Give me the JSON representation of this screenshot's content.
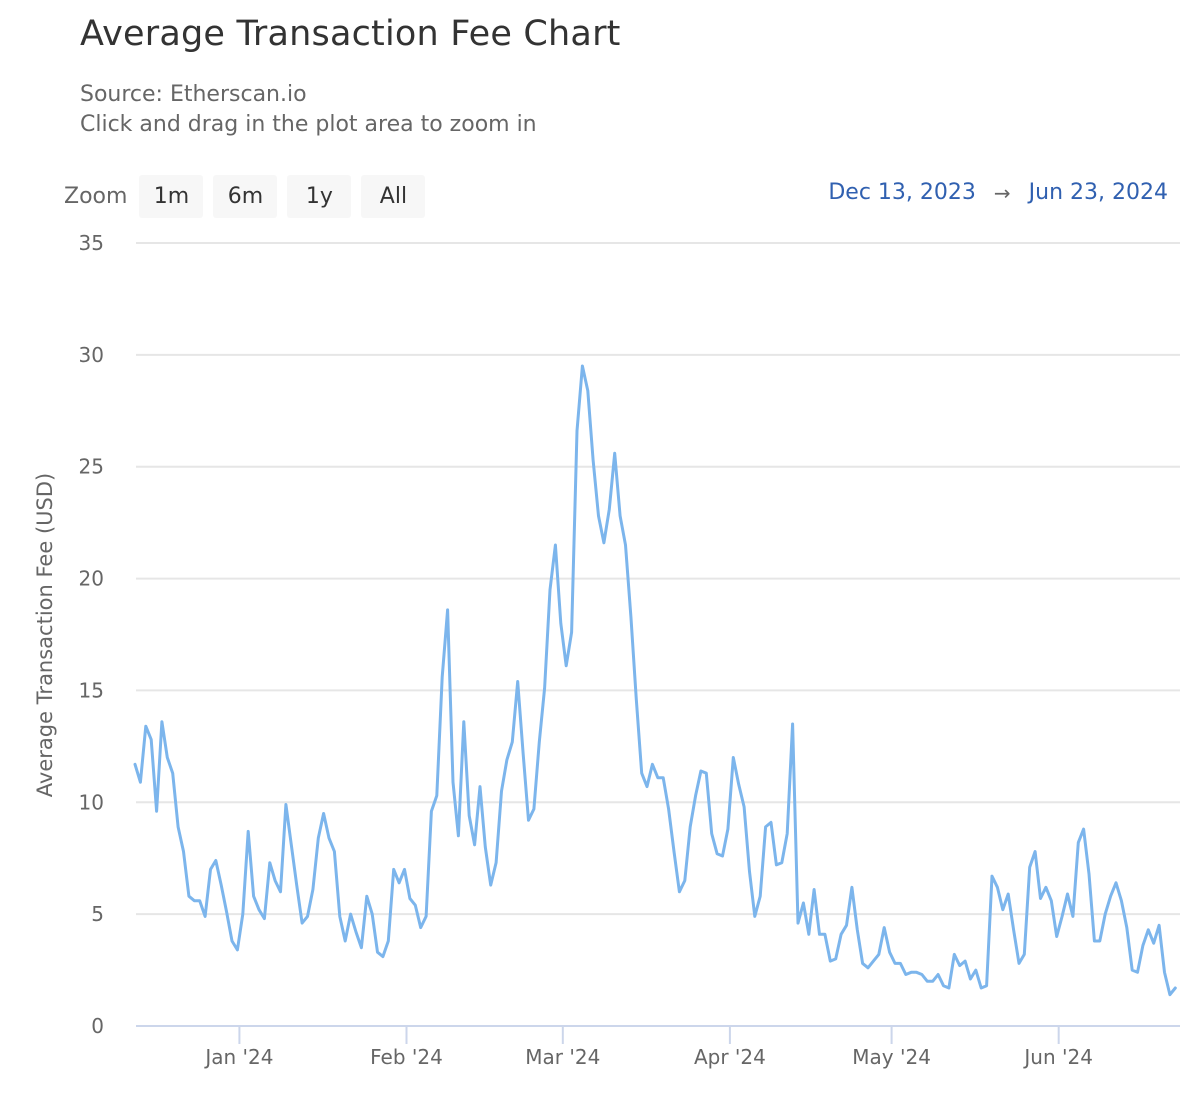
{
  "header": {
    "title": "Average Transaction Fee Chart",
    "source": "Source: Etherscan.io",
    "hint": "Click and drag in the plot area to zoom in"
  },
  "zoom": {
    "label": "Zoom",
    "buttons": [
      "1m",
      "6m",
      "1y",
      "All"
    ]
  },
  "range": {
    "from": "Dec 13, 2023",
    "arrow": "→",
    "to": "Jun 23, 2024"
  },
  "colors": {
    "line": "#7cb5ec",
    "grid": "#e6e6e6",
    "axis": "#ccd6eb",
    "date_text": "#3060b0"
  },
  "chart_data": {
    "type": "line",
    "title": "Average Transaction Fee Chart",
    "subtitle": "Source: Etherscan.io",
    "xlabel": "",
    "ylabel": "Average Transaction Fee (USD)",
    "ylim": [
      0,
      35
    ],
    "yticks": [
      0,
      5,
      10,
      15,
      20,
      25,
      30,
      35
    ],
    "xticks": [
      "Jan '24",
      "Feb '24",
      "Mar '24",
      "Apr '24",
      "May '24",
      "Jun '24"
    ],
    "xtick_day_index": [
      19,
      50,
      79,
      110,
      140,
      171
    ],
    "x_start": "2023-12-13",
    "x_end": "2024-06-23",
    "grid": true,
    "legend": "none",
    "series": [
      {
        "name": "Average Transaction Fee (USD)",
        "values": [
          11.7,
          10.9,
          13.4,
          12.8,
          9.6,
          13.6,
          12.0,
          11.3,
          8.9,
          7.8,
          5.8,
          5.6,
          5.6,
          4.9,
          7.0,
          7.4,
          6.3,
          5.1,
          3.8,
          3.4,
          5.0,
          8.7,
          5.8,
          5.2,
          4.8,
          7.3,
          6.5,
          6.0,
          9.9,
          8.1,
          6.3,
          4.6,
          4.9,
          6.1,
          8.4,
          9.5,
          8.4,
          7.8,
          4.9,
          3.8,
          5.0,
          4.2,
          3.5,
          5.8,
          5.0,
          3.3,
          3.1,
          3.8,
          7.0,
          6.4,
          7.0,
          5.7,
          5.4,
          4.4,
          4.9,
          9.6,
          10.3,
          15.6,
          18.6,
          10.9,
          8.5,
          13.6,
          9.4,
          8.1,
          10.7,
          8.0,
          6.3,
          7.3,
          10.5,
          11.9,
          12.7,
          15.4,
          12.2,
          9.2,
          9.7,
          12.7,
          15.1,
          19.5,
          21.5,
          18.0,
          16.1,
          17.6,
          26.6,
          29.5,
          28.4,
          25.3,
          22.8,
          21.6,
          23.1,
          25.6,
          22.8,
          21.5,
          18.3,
          14.6,
          11.3,
          10.7,
          11.7,
          11.1,
          11.1,
          9.7,
          7.8,
          6.0,
          6.5,
          8.9,
          10.3,
          11.4,
          11.3,
          8.6,
          7.7,
          7.6,
          8.8,
          12.0,
          10.8,
          9.8,
          6.9,
          4.9,
          5.8,
          8.9,
          9.1,
          7.2,
          7.3,
          8.6,
          13.5,
          4.6,
          5.5,
          4.1,
          6.1,
          4.1,
          4.1,
          2.9,
          3.0,
          4.1,
          4.5,
          6.2,
          4.3,
          2.8,
          2.6,
          2.9,
          3.2,
          4.4,
          3.3,
          2.8,
          2.8,
          2.3,
          2.4,
          2.4,
          2.3,
          2.0,
          2.0,
          2.3,
          1.8,
          1.7,
          3.2,
          2.7,
          2.9,
          2.1,
          2.5,
          1.7,
          1.8,
          6.7,
          6.2,
          5.2,
          5.9,
          4.3,
          2.8,
          3.2,
          7.1,
          7.8,
          5.7,
          6.2,
          5.6,
          4.0,
          4.9,
          5.9,
          4.9,
          8.2,
          8.8,
          6.8,
          3.8,
          3.8,
          5.0,
          5.8,
          6.4,
          5.6,
          4.4,
          2.5,
          2.4,
          3.6,
          4.3,
          3.7,
          4.5,
          2.4,
          1.4,
          1.7
        ]
      }
    ]
  }
}
